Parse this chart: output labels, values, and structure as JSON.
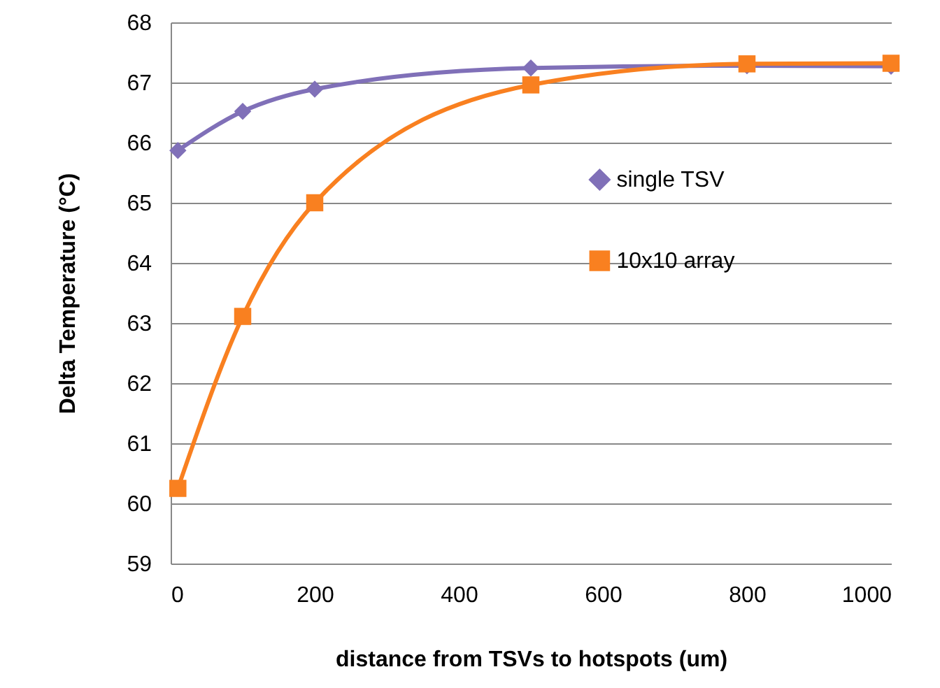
{
  "chart_data": {
    "type": "line",
    "xlabel": "distance from TSVs to hotspots (um)",
    "ylabel": "Delta Temperature (°C)",
    "x": [
      10,
      100,
      200,
      500,
      800,
      1000
    ],
    "series": [
      {
        "name": "single TSV",
        "color": "#8070b8",
        "marker": "diamond",
        "values": [
          65.87,
          66.52,
          66.89,
          67.24,
          67.28,
          67.27
        ]
      },
      {
        "name": "10x10 array",
        "color": "#f98020",
        "marker": "square",
        "values": [
          60.25,
          63.11,
          65.0,
          66.96,
          67.31,
          67.32
        ]
      }
    ],
    "xlim": [
      0,
      1000
    ],
    "xticks": [
      0,
      200,
      400,
      600,
      800,
      1000
    ],
    "ylim": [
      59,
      68
    ],
    "yticks": [
      59,
      60,
      61,
      62,
      63,
      64,
      65,
      66,
      67,
      68
    ],
    "grid": "y",
    "legend": "right",
    "line_style": "solid"
  }
}
